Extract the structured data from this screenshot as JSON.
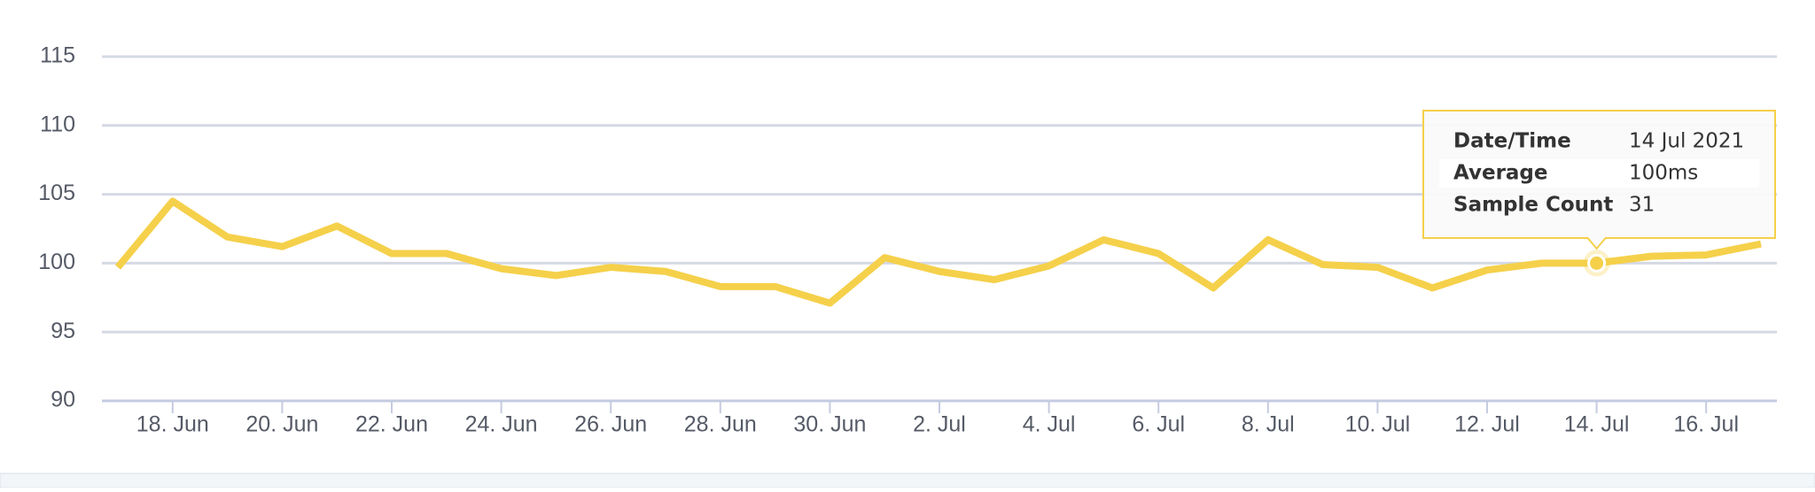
{
  "chart_data": {
    "type": "line",
    "categories": [
      null,
      "18. Jun",
      null,
      "20. Jun",
      null,
      "22. Jun",
      null,
      "24. Jun",
      null,
      "26. Jun",
      null,
      "28. Jun",
      null,
      "30. Jun",
      null,
      "2. Jul",
      null,
      "4. Jul",
      null,
      "6. Jul",
      null,
      "8. Jul",
      null,
      "10. Jul",
      null,
      "12. Jul",
      null,
      "14. Jul",
      null,
      "16. Jul",
      null
    ],
    "series": [
      {
        "name": "Average",
        "color": "#f5d04a",
        "values": [
          99.7,
          104.5,
          101.9,
          101.2,
          102.7,
          100.7,
          100.7,
          99.6,
          99.1,
          99.7,
          99.4,
          98.3,
          98.3,
          97.1,
          100.4,
          99.4,
          98.8,
          99.8,
          101.7,
          100.7,
          98.2,
          101.7,
          99.9,
          99.7,
          98.2,
          99.5,
          100.0,
          100.0,
          100.5,
          100.6,
          101.4
        ]
      }
    ],
    "ylim": [
      90,
      115
    ],
    "yticks": [
      90,
      95,
      100,
      105,
      110,
      115
    ],
    "grid": true,
    "tooltip": {
      "point": 27,
      "rows": [
        [
          "Date/Time",
          "14 Jul 2021"
        ],
        [
          "Average",
          "100ms"
        ],
        [
          "Sample Count",
          "31"
        ]
      ]
    }
  }
}
